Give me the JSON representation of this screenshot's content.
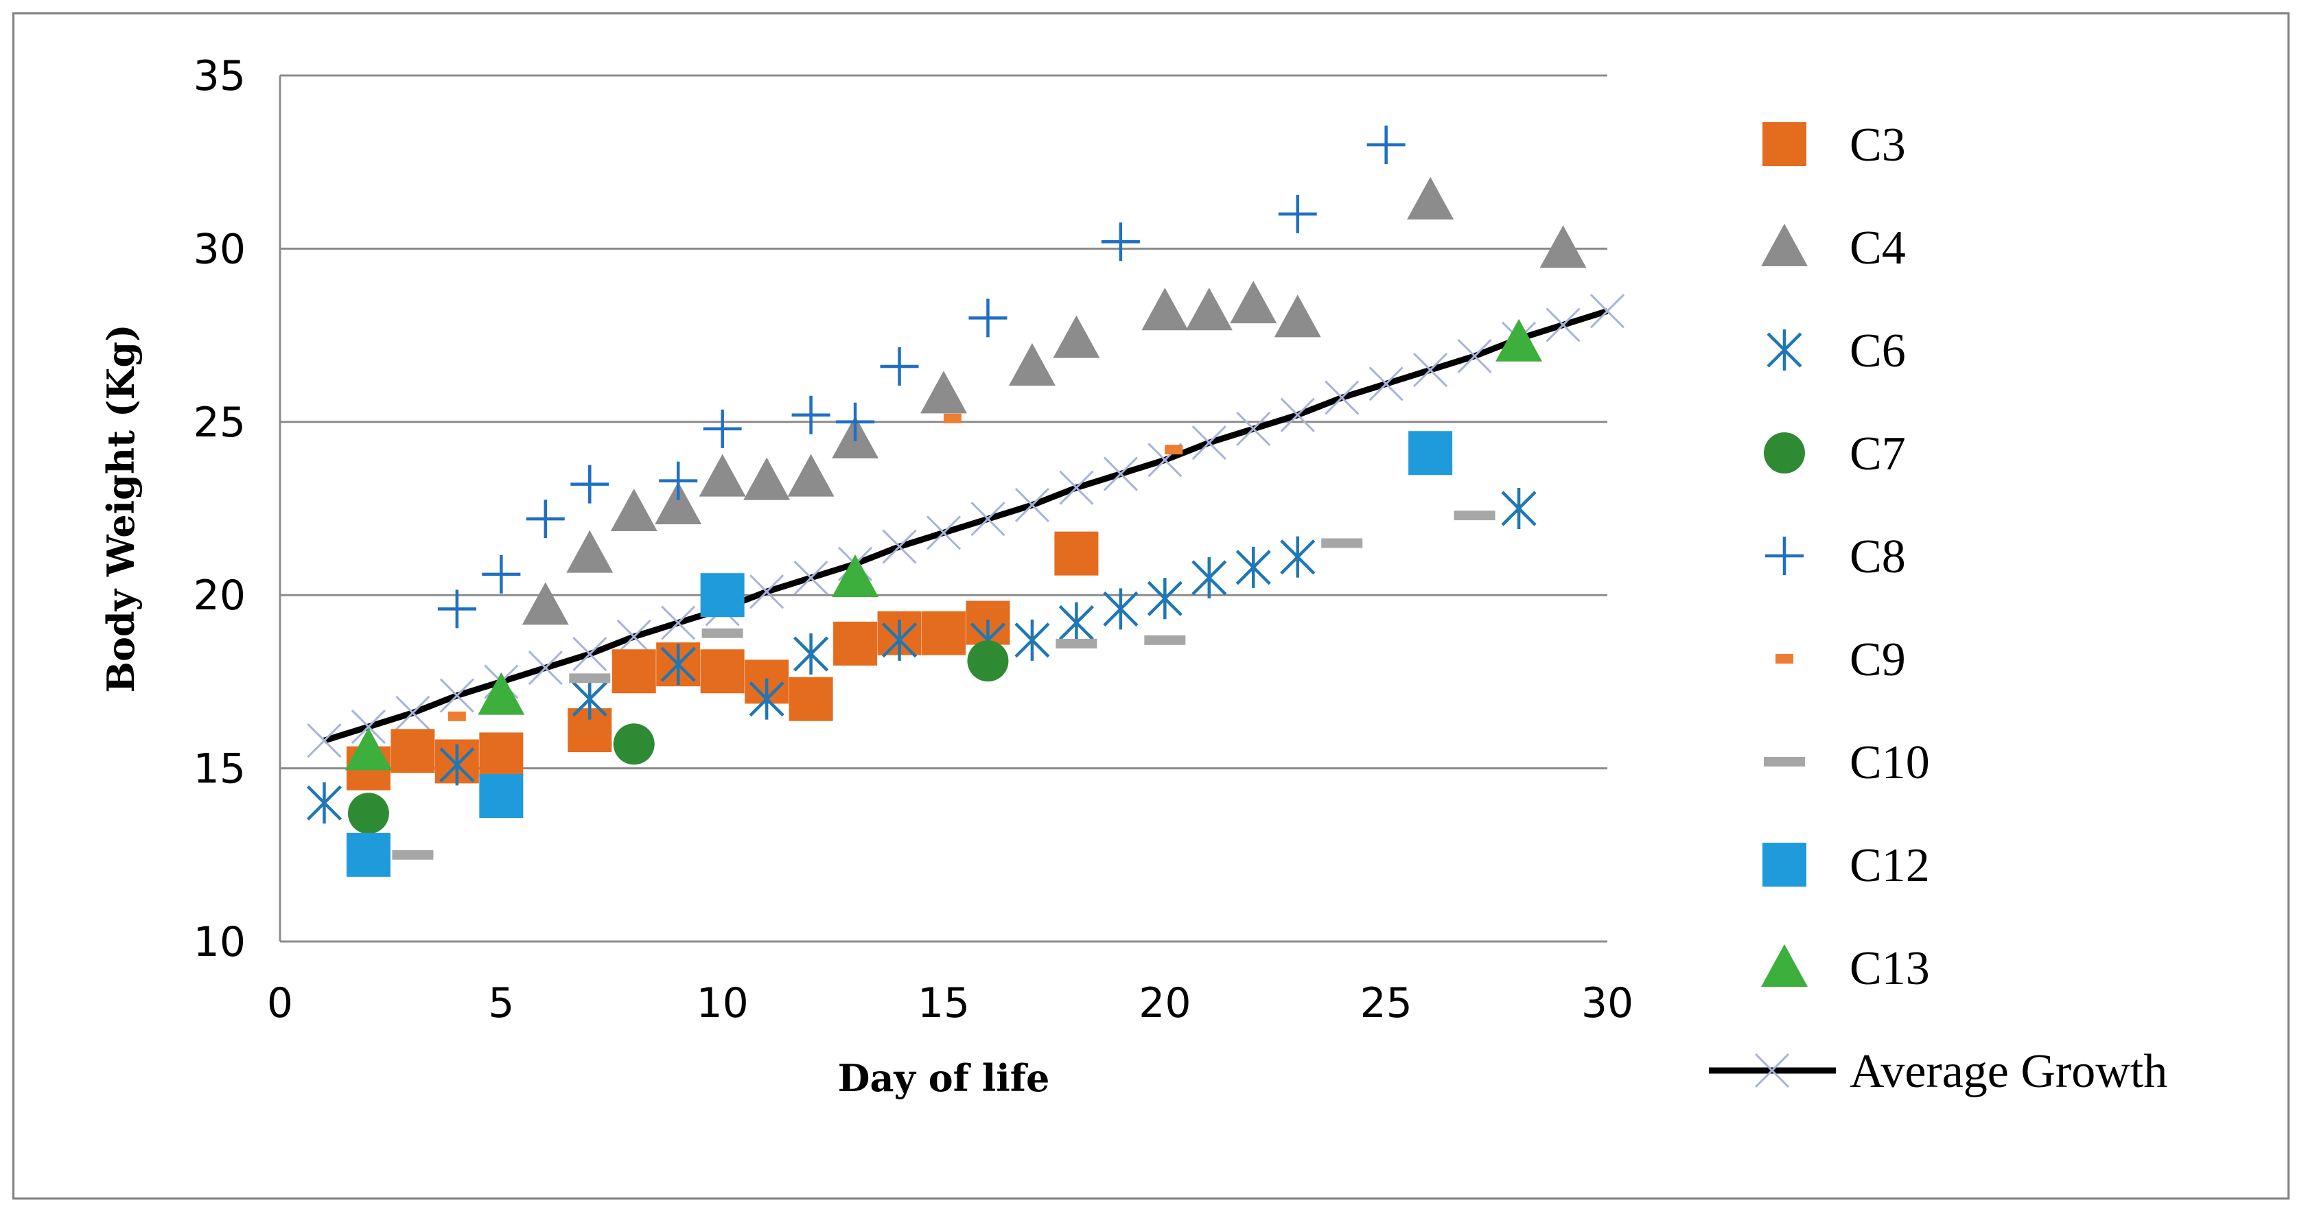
{
  "chart_data": {
    "type": "scatter",
    "xlabel": "Day of life",
    "ylabel": "Body Weight (Kg)",
    "xlim": [
      0,
      30
    ],
    "ylim": [
      10,
      35
    ],
    "xticks": [
      0,
      5,
      10,
      15,
      20,
      25,
      30
    ],
    "yticks": [
      10,
      15,
      20,
      25,
      30,
      35
    ],
    "grid": "horizontal",
    "legend_position": "right",
    "series": [
      {
        "name": "C3",
        "marker": "square",
        "color": "#E46C1E",
        "x": [
          2,
          3,
          4,
          5,
          7,
          8,
          9,
          10,
          11,
          12,
          13,
          14,
          15,
          16,
          18
        ],
        "y": [
          15.0,
          15.5,
          15.2,
          15.4,
          16.1,
          17.8,
          18.0,
          17.8,
          17.5,
          17.0,
          18.6,
          18.9,
          18.9,
          19.2,
          21.2
        ]
      },
      {
        "name": "C4",
        "marker": "triangle",
        "color": "#8C8C8C",
        "x": [
          6,
          7,
          8,
          9,
          10,
          11,
          12,
          13,
          15,
          17,
          18,
          20,
          21,
          22,
          23,
          26,
          29
        ],
        "y": [
          19.7,
          21.2,
          22.4,
          22.6,
          23.4,
          23.3,
          23.4,
          24.5,
          25.8,
          26.6,
          27.4,
          28.2,
          28.2,
          28.4,
          28.0,
          31.4,
          30.0
        ]
      },
      {
        "name": "C6",
        "marker": "asterisk",
        "color": "#1F77B4",
        "x": [
          1,
          4,
          7,
          9,
          11,
          12,
          14,
          16,
          17,
          18,
          19,
          20,
          21,
          22,
          23,
          28
        ],
        "y": [
          14.0,
          15.1,
          17.0,
          18.0,
          17.0,
          18.3,
          18.7,
          18.7,
          18.7,
          19.2,
          19.6,
          19.9,
          20.5,
          20.8,
          21.1,
          22.5
        ]
      },
      {
        "name": "C7",
        "marker": "circle",
        "color": "#2E8B33",
        "x": [
          2,
          8,
          16
        ],
        "y": [
          13.7,
          15.7,
          18.1
        ]
      },
      {
        "name": "C8",
        "marker": "plus",
        "color": "#1F6FC4",
        "x": [
          4,
          5,
          6,
          7,
          9,
          10,
          12,
          13,
          14,
          16,
          19,
          23,
          25
        ],
        "y": [
          19.6,
          20.6,
          22.2,
          23.2,
          23.3,
          24.8,
          25.2,
          25.0,
          26.6,
          28.0,
          30.2,
          31.0,
          33.0
        ]
      },
      {
        "name": "C9",
        "marker": "dash-small",
        "color": "#ED7D31",
        "x": [
          4,
          15.2,
          20.2
        ],
        "y": [
          16.5,
          25.1,
          24.2
        ]
      },
      {
        "name": "C10",
        "marker": "dash",
        "color": "#A6A6A6",
        "x": [
          3,
          7,
          10,
          18,
          20,
          24,
          27
        ],
        "y": [
          12.5,
          17.6,
          18.9,
          18.6,
          18.7,
          21.5,
          22.3
        ]
      },
      {
        "name": "C12",
        "marker": "square",
        "color": "#1F9BDB",
        "x": [
          2,
          5,
          10,
          26
        ],
        "y": [
          12.5,
          14.2,
          20.0,
          24.1
        ]
      },
      {
        "name": "C13",
        "marker": "triangle",
        "color": "#3CAF3C",
        "x": [
          2,
          5,
          13,
          28
        ],
        "y": [
          15.5,
          17.1,
          20.5,
          27.3
        ]
      }
    ],
    "average_growth": {
      "name": "Average Growth",
      "color": "#000000",
      "marker_color": "#A7B3D9",
      "x": [
        1,
        2,
        3,
        4,
        5,
        6,
        7,
        8,
        9,
        10,
        11,
        12,
        13,
        14,
        15,
        16,
        17,
        18,
        19,
        20,
        21,
        22,
        23,
        24,
        25,
        26,
        27,
        28,
        29,
        30
      ],
      "y": [
        15.8,
        16.2,
        16.6,
        17.1,
        17.5,
        17.9,
        18.3,
        18.8,
        19.2,
        19.6,
        20.1,
        20.5,
        20.9,
        21.4,
        21.8,
        22.2,
        22.6,
        23.1,
        23.5,
        23.9,
        24.4,
        24.8,
        25.2,
        25.7,
        26.1,
        26.5,
        26.9,
        27.4,
        27.8,
        28.2
      ]
    }
  }
}
